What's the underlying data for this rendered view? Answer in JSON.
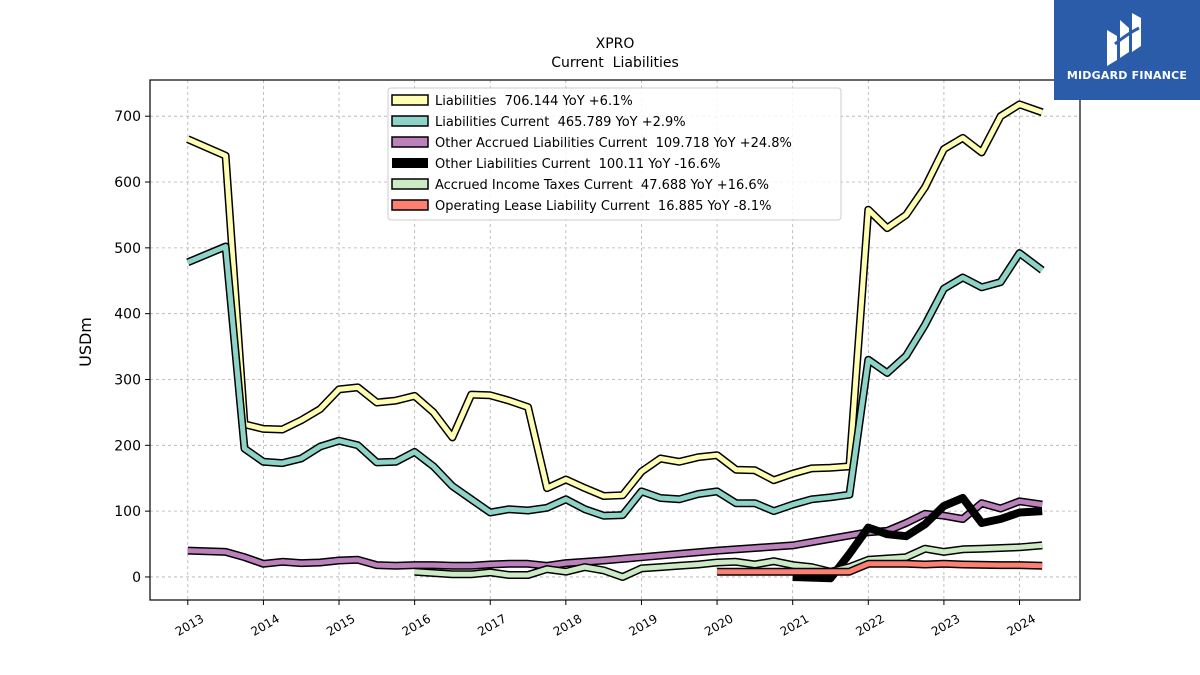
{
  "chart_data": {
    "type": "line",
    "title": "XPRO",
    "subtitle": "Current  Liabilities",
    "ylabel": "USDm",
    "xlabel": "",
    "xlim": [
      2012.5,
      2024.8
    ],
    "ylim": [
      -35,
      755
    ],
    "yticks": [
      0,
      100,
      200,
      300,
      400,
      500,
      600,
      700
    ],
    "xticks": [
      2013,
      2014,
      2015,
      2016,
      2017,
      2018,
      2019,
      2020,
      2021,
      2022,
      2023,
      2024
    ],
    "grid": true,
    "legend_position": "top-center",
    "series": [
      {
        "name": "Liabilities  706.144 YoY +6.1%",
        "color": "#ffffb3",
        "width": 5,
        "points": [
          [
            2013.0,
            665
          ],
          [
            2013.5,
            640
          ],
          [
            2013.75,
            232
          ],
          [
            2014.0,
            225
          ],
          [
            2014.25,
            224
          ],
          [
            2014.5,
            238
          ],
          [
            2014.75,
            255
          ],
          [
            2015.0,
            285
          ],
          [
            2015.25,
            288
          ],
          [
            2015.5,
            265
          ],
          [
            2015.75,
            268
          ],
          [
            2016.0,
            275
          ],
          [
            2016.25,
            250
          ],
          [
            2016.5,
            212
          ],
          [
            2016.75,
            277
          ],
          [
            2017.0,
            276
          ],
          [
            2017.25,
            268
          ],
          [
            2017.5,
            258
          ],
          [
            2017.75,
            135
          ],
          [
            2018.0,
            148
          ],
          [
            2018.25,
            135
          ],
          [
            2018.5,
            123
          ],
          [
            2018.75,
            124
          ],
          [
            2019.0,
            160
          ],
          [
            2019.25,
            180
          ],
          [
            2019.5,
            175
          ],
          [
            2019.75,
            182
          ],
          [
            2020.0,
            185
          ],
          [
            2020.25,
            163
          ],
          [
            2020.5,
            162
          ],
          [
            2020.75,
            147
          ],
          [
            2021.0,
            157
          ],
          [
            2021.25,
            165
          ],
          [
            2021.5,
            166
          ],
          [
            2021.75,
            168
          ],
          [
            2022.0,
            558
          ],
          [
            2022.25,
            530
          ],
          [
            2022.5,
            550
          ],
          [
            2022.75,
            592
          ],
          [
            2023.0,
            650
          ],
          [
            2023.25,
            667
          ],
          [
            2023.5,
            645
          ],
          [
            2023.75,
            700
          ],
          [
            2024.0,
            718
          ],
          [
            2024.3,
            706
          ]
        ]
      },
      {
        "name": "Liabilities Current  465.789 YoY +2.9%",
        "color": "#8dd3c7",
        "width": 5,
        "points": [
          [
            2013.0,
            478
          ],
          [
            2013.5,
            502
          ],
          [
            2013.75,
            195
          ],
          [
            2014.0,
            175
          ],
          [
            2014.25,
            173
          ],
          [
            2014.5,
            180
          ],
          [
            2014.75,
            198
          ],
          [
            2015.0,
            207
          ],
          [
            2015.25,
            200
          ],
          [
            2015.5,
            174
          ],
          [
            2015.75,
            175
          ],
          [
            2016.0,
            190
          ],
          [
            2016.25,
            168
          ],
          [
            2016.5,
            138
          ],
          [
            2016.75,
            118
          ],
          [
            2017.0,
            98
          ],
          [
            2017.25,
            103
          ],
          [
            2017.5,
            101
          ],
          [
            2017.75,
            105
          ],
          [
            2018.0,
            118
          ],
          [
            2018.25,
            103
          ],
          [
            2018.5,
            93
          ],
          [
            2018.75,
            94
          ],
          [
            2019.0,
            130
          ],
          [
            2019.25,
            120
          ],
          [
            2019.5,
            118
          ],
          [
            2019.75,
            126
          ],
          [
            2020.0,
            130
          ],
          [
            2020.25,
            112
          ],
          [
            2020.5,
            112
          ],
          [
            2020.75,
            100
          ],
          [
            2021.0,
            110
          ],
          [
            2021.25,
            118
          ],
          [
            2021.5,
            121
          ],
          [
            2021.75,
            125
          ],
          [
            2022.0,
            330
          ],
          [
            2022.25,
            310
          ],
          [
            2022.5,
            336
          ],
          [
            2022.75,
            383
          ],
          [
            2023.0,
            438
          ],
          [
            2023.25,
            455
          ],
          [
            2023.5,
            440
          ],
          [
            2023.75,
            448
          ],
          [
            2024.0,
            492
          ],
          [
            2024.3,
            466
          ]
        ]
      },
      {
        "name": "Other Accrued Liabilities Current  109.718 YoY +24.8%",
        "color": "#bc80bd",
        "width": 5,
        "points": [
          [
            2013.0,
            40
          ],
          [
            2013.5,
            38
          ],
          [
            2013.75,
            30
          ],
          [
            2014.0,
            20
          ],
          [
            2014.25,
            23
          ],
          [
            2014.5,
            21
          ],
          [
            2014.75,
            22
          ],
          [
            2015.0,
            25
          ],
          [
            2015.25,
            26
          ],
          [
            2015.5,
            18
          ],
          [
            2015.75,
            17
          ],
          [
            2016.0,
            18
          ],
          [
            2016.25,
            18
          ],
          [
            2016.5,
            17
          ],
          [
            2016.75,
            17
          ],
          [
            2017.0,
            19
          ],
          [
            2017.25,
            20
          ],
          [
            2017.5,
            20
          ],
          [
            2017.75,
            17
          ],
          [
            2018.0,
            21
          ],
          [
            2018.5,
            25
          ],
          [
            2019.0,
            30
          ],
          [
            2019.5,
            35
          ],
          [
            2020.0,
            40
          ],
          [
            2020.5,
            44
          ],
          [
            2021.0,
            48
          ],
          [
            2021.5,
            58
          ],
          [
            2022.0,
            68
          ],
          [
            2022.25,
            70
          ],
          [
            2022.5,
            82
          ],
          [
            2022.75,
            96
          ],
          [
            2023.0,
            93
          ],
          [
            2023.25,
            88
          ],
          [
            2023.5,
            112
          ],
          [
            2023.75,
            104
          ],
          [
            2024.0,
            115
          ],
          [
            2024.3,
            110
          ]
        ]
      },
      {
        "name": "Other Liabilities Current  100.11 YoY -16.6%",
        "color": "#000000",
        "width": 8,
        "points": [
          [
            2021.0,
            0
          ],
          [
            2021.25,
            -1
          ],
          [
            2021.5,
            -2
          ],
          [
            2021.75,
            35
          ],
          [
            2022.0,
            75
          ],
          [
            2022.25,
            65
          ],
          [
            2022.5,
            62
          ],
          [
            2022.75,
            80
          ],
          [
            2023.0,
            108
          ],
          [
            2023.25,
            120
          ],
          [
            2023.5,
            82
          ],
          [
            2023.75,
            88
          ],
          [
            2024.0,
            98
          ],
          [
            2024.3,
            100
          ]
        ]
      },
      {
        "name": "Accrued Income Taxes Current  47.688 YoY +16.6%",
        "color": "#ccebc5",
        "width": 5,
        "points": [
          [
            2016.0,
            8
          ],
          [
            2016.25,
            6
          ],
          [
            2016.5,
            4
          ],
          [
            2016.75,
            4
          ],
          [
            2017.0,
            7
          ],
          [
            2017.25,
            3
          ],
          [
            2017.5,
            3
          ],
          [
            2017.75,
            12
          ],
          [
            2018.0,
            8
          ],
          [
            2018.25,
            15
          ],
          [
            2018.5,
            10
          ],
          [
            2018.75,
            0
          ],
          [
            2019.0,
            13
          ],
          [
            2019.25,
            15
          ],
          [
            2019.5,
            17
          ],
          [
            2019.75,
            19
          ],
          [
            2020.0,
            22
          ],
          [
            2020.25,
            23
          ],
          [
            2020.5,
            19
          ],
          [
            2020.75,
            24
          ],
          [
            2021.0,
            18
          ],
          [
            2021.25,
            15
          ],
          [
            2021.5,
            8
          ],
          [
            2021.75,
            15
          ],
          [
            2022.0,
            26
          ],
          [
            2022.25,
            28
          ],
          [
            2022.5,
            30
          ],
          [
            2022.75,
            43
          ],
          [
            2023.0,
            38
          ],
          [
            2023.25,
            42
          ],
          [
            2023.5,
            43
          ],
          [
            2023.75,
            44
          ],
          [
            2024.0,
            45
          ],
          [
            2024.3,
            48
          ]
        ]
      },
      {
        "name": "Operating Lease Liability Current  16.885 YoY -8.1%",
        "color": "#fb8072",
        "width": 5,
        "points": [
          [
            2020.0,
            8
          ],
          [
            2021.75,
            8
          ],
          [
            2022.0,
            20
          ],
          [
            2022.5,
            20
          ],
          [
            2022.75,
            19
          ],
          [
            2023.0,
            20
          ],
          [
            2023.25,
            19
          ],
          [
            2023.75,
            18
          ],
          [
            2024.0,
            18
          ],
          [
            2024.3,
            17
          ]
        ]
      }
    ]
  },
  "logo": {
    "text": "MIDGARD FINANCE",
    "bg_color": "#2a5caa"
  }
}
